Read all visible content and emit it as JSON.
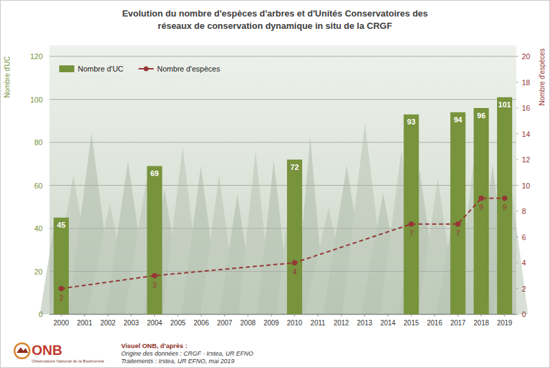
{
  "chart_data": {
    "type": "bar",
    "title": "Evolution du nombre d'espèces d'arbres et d'Unités Conservatoires des réseaux de conservation dynamique in situ de la CRGF",
    "ylabel": "Nombre d'UC",
    "y2label": "Nombre d'espèces",
    "x": [
      2000,
      2004,
      2010,
      2015,
      2017,
      2018,
      2019
    ],
    "xlim": [
      1999.5,
      2019.5
    ],
    "xticks": [
      2000,
      2001,
      2002,
      2003,
      2004,
      2005,
      2006,
      2007,
      2008,
      2009,
      2010,
      2011,
      2012,
      2013,
      2014,
      2015,
      2016,
      2017,
      2018,
      2019
    ],
    "ylim": [
      0,
      120
    ],
    "yticks": [
      0,
      20,
      40,
      60,
      80,
      100,
      120
    ],
    "y2lim": [
      0,
      20
    ],
    "y2ticks": [
      0,
      2,
      4,
      6,
      8,
      10,
      12,
      14,
      16,
      18,
      20
    ],
    "series": [
      {
        "name": "Nombre d'UC",
        "type": "bar",
        "color": "#77933c",
        "values": [
          45,
          69,
          72,
          93,
          94,
          96,
          101
        ]
      },
      {
        "name": "Nombre d'espèces",
        "type": "line",
        "axis": "y2",
        "color": "#953735",
        "line_style": "dashed",
        "marker": "circle",
        "values": [
          2,
          3,
          4,
          7,
          7,
          9,
          9
        ]
      }
    ],
    "grid": true,
    "legend": "top-left",
    "data_labels": true,
    "annotations": [
      "ONB",
      "Observatoire National de la Biodiversité",
      "Visuel ONB, d'après :",
      "Origine des données : CRGF - Irstea, UR EFNO",
      "Traitements : Irstea, UR EFNO, mai 2019"
    ]
  }
}
